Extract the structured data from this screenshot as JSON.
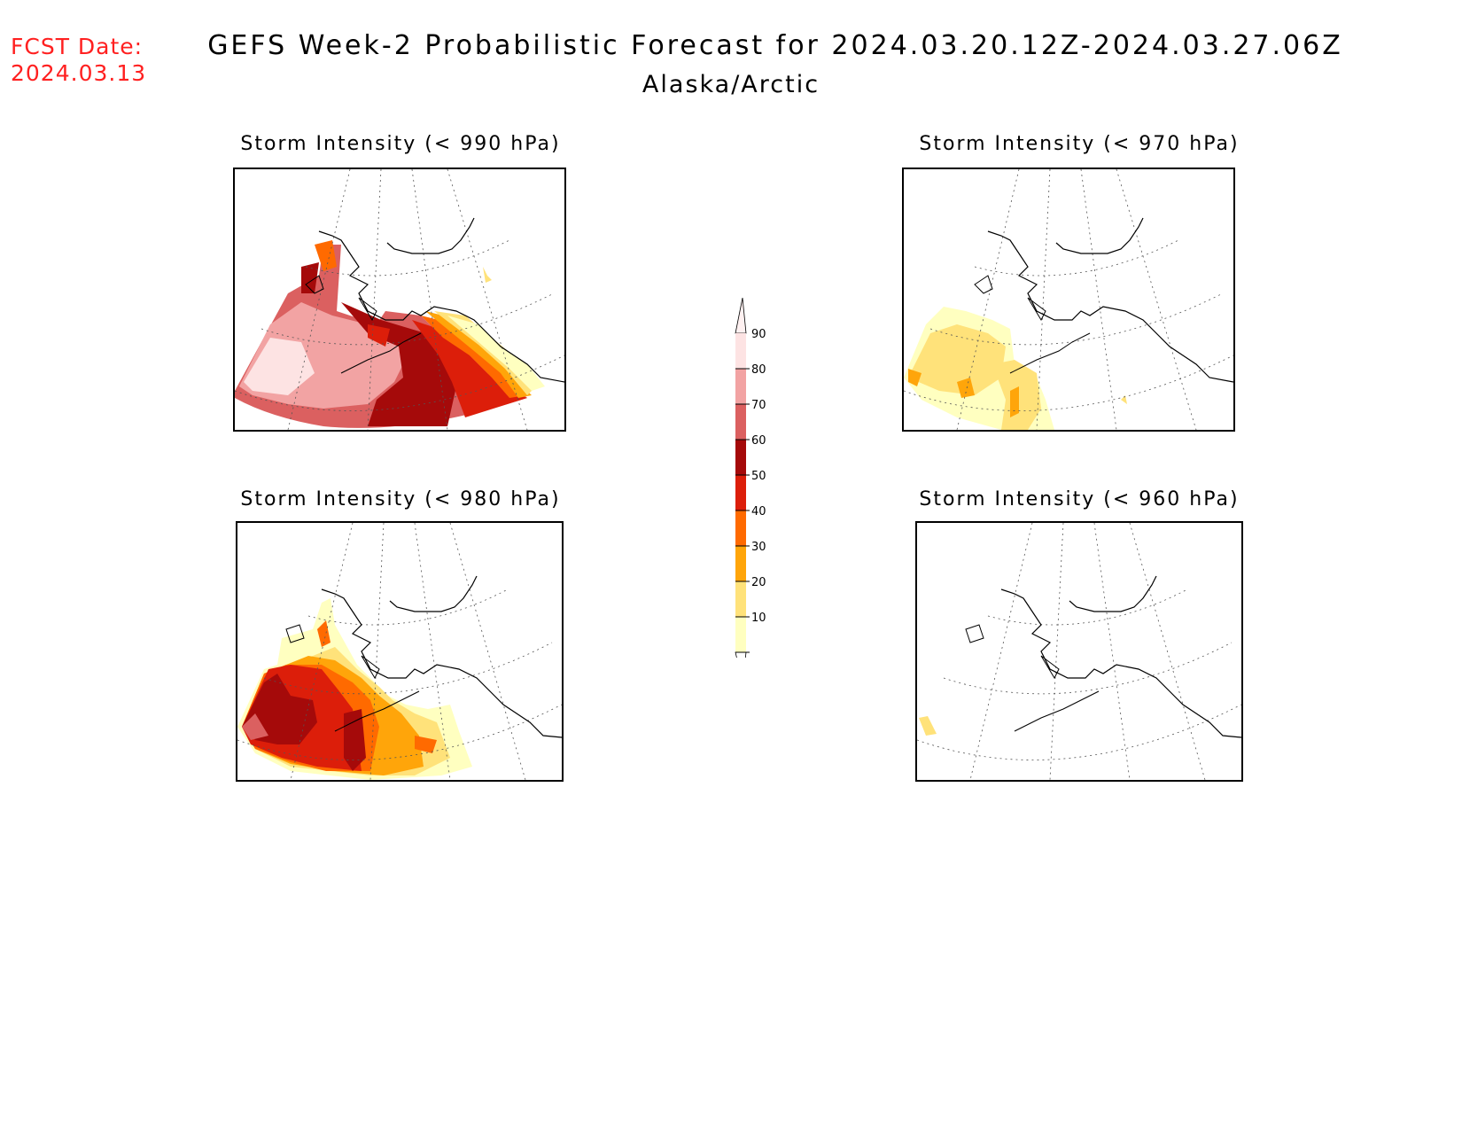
{
  "header": {
    "fcst_label": "FCST Date:",
    "fcst_date": "2024.03.13",
    "title": "GEFS Week-2 Probabilistic Forecast for 2024.03.20.12Z-2024.03.27.06Z",
    "region": "Alaska/Arctic"
  },
  "panels": [
    {
      "id": "p990",
      "title": "Storm Intensity (< 990 hPa)",
      "intensity": "high"
    },
    {
      "id": "p970",
      "title": "Storm Intensity (< 970 hPa)",
      "intensity": "low"
    },
    {
      "id": "p980",
      "title": "Storm Intensity (< 980 hPa)",
      "intensity": "medium"
    },
    {
      "id": "p960",
      "title": "Storm Intensity (< 960 hPa)",
      "intensity": "minimal"
    }
  ],
  "colorbar": {
    "levels": [
      "90",
      "80",
      "70",
      "60",
      "50",
      "40",
      "30",
      "20",
      "10"
    ],
    "colors": [
      "#fde3e3",
      "#f2a3a3",
      "#db6060",
      "#a50a0a",
      "#dc1e0a",
      "#ff6a00",
      "#ffa50a",
      "#ffe27a",
      "#ffffc0"
    ]
  }
}
